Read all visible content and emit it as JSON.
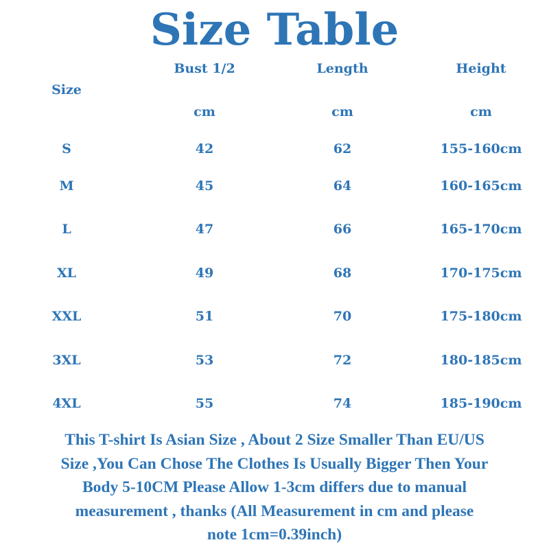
{
  "title": "Size Table",
  "headers": {
    "size": "Size",
    "bust": "Bust 1/2",
    "length": "Length",
    "height": "Height",
    "unit": "cm"
  },
  "rows": [
    {
      "size": "S",
      "bust": "42",
      "length": "62",
      "height": "155-160cm"
    },
    {
      "size": "M",
      "bust": "45",
      "length": "64",
      "height": "160-165cm"
    },
    {
      "size": "L",
      "bust": "47",
      "length": "66",
      "height": "165-170cm"
    },
    {
      "size": "XL",
      "bust": "49",
      "length": "68",
      "height": "170-175cm"
    },
    {
      "size": "XXL",
      "bust": "51",
      "length": "70",
      "height": "175-180cm"
    },
    {
      "size": "3XL",
      "bust": "53",
      "length": "72",
      "height": "180-185cm"
    },
    {
      "size": "4XL",
      "bust": "55",
      "length": "74",
      "height": "185-190cm"
    }
  ],
  "note_lines": [
    "This T-shirt Is Asian Size , About 2 Size Smaller Than EU/US",
    "Size ,You Can Chose The Clothes Is Usually Bigger Then Your",
    "Body 5-10CM Please Allow 1-3cm differs due to manual",
    "measurement , thanks (All Measurement in cm and please",
    "note 1cm=0.39inch)"
  ],
  "colors": {
    "text": "#2e75b6",
    "background": "#ffffff"
  }
}
